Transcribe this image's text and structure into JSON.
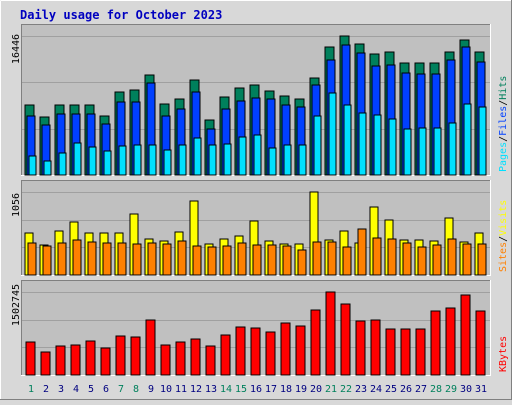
{
  "title": "Daily usage for October 2023",
  "colors": {
    "background": "#d8d8d8",
    "panel": "#c0c0c0",
    "title": "#0000c0",
    "hits": "#00805c",
    "files": "#0040ff",
    "pages": "#00e0ff",
    "visits": "#ffff00",
    "sites": "#ff8000",
    "kbytes": "#ff0000",
    "weekday_label": "#000080",
    "weekend_label": "#00805c"
  },
  "chart_data": [
    {
      "type": "bar",
      "panel": "hits-files-pages",
      "max_label": "16446",
      "legend": [
        "Pages",
        "Files",
        "Hits"
      ],
      "ylim": [
        0,
        16446
      ],
      "categories": [
        "1",
        "2",
        "3",
        "4",
        "5",
        "6",
        "7",
        "8",
        "9",
        "10",
        "11",
        "12",
        "13",
        "14",
        "15",
        "16",
        "17",
        "18",
        "19",
        "20",
        "21",
        "22",
        "23",
        "24",
        "25",
        "26",
        "27",
        "28",
        "29",
        "30",
        "31"
      ],
      "weekend_days": [
        "1",
        "7",
        "8",
        "14",
        "15",
        "21",
        "22",
        "28",
        "29"
      ],
      "series": [
        {
          "name": "Hits",
          "values": [
            8300,
            6900,
            8300,
            8300,
            8300,
            7000,
            9800,
            10100,
            11800,
            8400,
            9000,
            11200,
            6500,
            9200,
            10300,
            10600,
            9900,
            9400,
            9000,
            11500,
            15100,
            16446,
            15500,
            14300,
            14600,
            13300,
            13200,
            13200,
            14600,
            16000,
            14600
          ]
        },
        {
          "name": "Files",
          "values": [
            7000,
            5900,
            7200,
            7200,
            7200,
            6000,
            8600,
            8600,
            10900,
            7000,
            7800,
            9800,
            5400,
            7800,
            8700,
            9100,
            9000,
            8300,
            8000,
            10700,
            13600,
            15400,
            14400,
            12900,
            13000,
            12100,
            12000,
            12000,
            13600,
            15100,
            13400
          ]
        },
        {
          "name": "Pages",
          "values": [
            2300,
            1700,
            2600,
            3800,
            3300,
            2800,
            3400,
            3500,
            3600,
            2900,
            3600,
            4400,
            3500,
            3700,
            4500,
            4700,
            3200,
            3600,
            3600,
            7000,
            9700,
            8300,
            7300,
            7100,
            6600,
            5500,
            5600,
            5600,
            6200,
            8400,
            8100
          ]
        }
      ]
    },
    {
      "type": "bar",
      "panel": "visits-sites",
      "max_label": "1056",
      "legend": [
        "Sites",
        "Visits"
      ],
      "ylim": [
        0,
        1056
      ],
      "categories": [
        "1",
        "2",
        "3",
        "4",
        "5",
        "6",
        "7",
        "8",
        "9",
        "10",
        "11",
        "12",
        "13",
        "14",
        "15",
        "16",
        "17",
        "18",
        "19",
        "20",
        "21",
        "22",
        "23",
        "24",
        "25",
        "26",
        "27",
        "28",
        "29",
        "30",
        "31"
      ],
      "series": [
        {
          "name": "Visits",
          "values": [
            530,
            380,
            560,
            680,
            540,
            530,
            530,
            780,
            460,
            430,
            550,
            940,
            390,
            460,
            500,
            690,
            430,
            390,
            400,
            1056,
            440,
            560,
            410,
            860,
            700,
            440,
            450,
            430,
            730,
            420,
            530
          ]
        },
        {
          "name": "Sites",
          "values": [
            410,
            370,
            410,
            440,
            420,
            410,
            410,
            400,
            410,
            400,
            430,
            370,
            360,
            370,
            410,
            380,
            380,
            370,
            320,
            420,
            420,
            360,
            580,
            470,
            460,
            410,
            360,
            380,
            460,
            400,
            400
          ]
        }
      ]
    },
    {
      "type": "bar",
      "panel": "kbytes",
      "max_label": "1502745",
      "legend": [
        "KBytes"
      ],
      "ylim": [
        0,
        1502745
      ],
      "categories": [
        "1",
        "2",
        "3",
        "4",
        "5",
        "6",
        "7",
        "8",
        "9",
        "10",
        "11",
        "12",
        "13",
        "14",
        "15",
        "16",
        "17",
        "18",
        "19",
        "20",
        "21",
        "22",
        "23",
        "24",
        "25",
        "26",
        "27",
        "28",
        "29",
        "30",
        "31"
      ],
      "series": [
        {
          "name": "KBytes",
          "values": [
            600000,
            420000,
            520000,
            540000,
            620000,
            480000,
            710000,
            690000,
            1000000,
            540000,
            600000,
            650000,
            530000,
            720000,
            870000,
            850000,
            770000,
            940000,
            880000,
            1180000,
            1502745,
            1280000,
            980000,
            1000000,
            830000,
            830000,
            830000,
            1160000,
            1220000,
            1440000,
            1160000
          ]
        }
      ]
    }
  ]
}
